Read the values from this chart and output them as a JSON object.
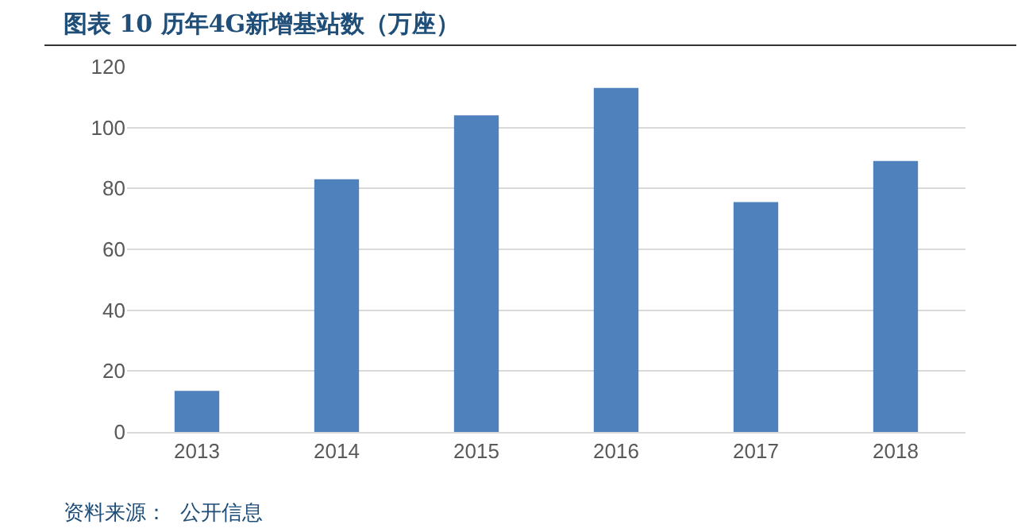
{
  "chart_data": {
    "type": "bar",
    "title": "图表 10 历年4G新增基站数（万座）",
    "categories": [
      "2013",
      "2014",
      "2015",
      "2016",
      "2017",
      "2018"
    ],
    "values": [
      13.5,
      83,
      104,
      113,
      75.5,
      89
    ],
    "color": "#4f81bd",
    "ylim": [
      0,
      120
    ],
    "yticks": [
      0,
      20,
      40,
      60,
      80,
      100,
      120
    ],
    "grid": "y",
    "annotations": [
      "资料来源：  公开信息"
    ]
  }
}
